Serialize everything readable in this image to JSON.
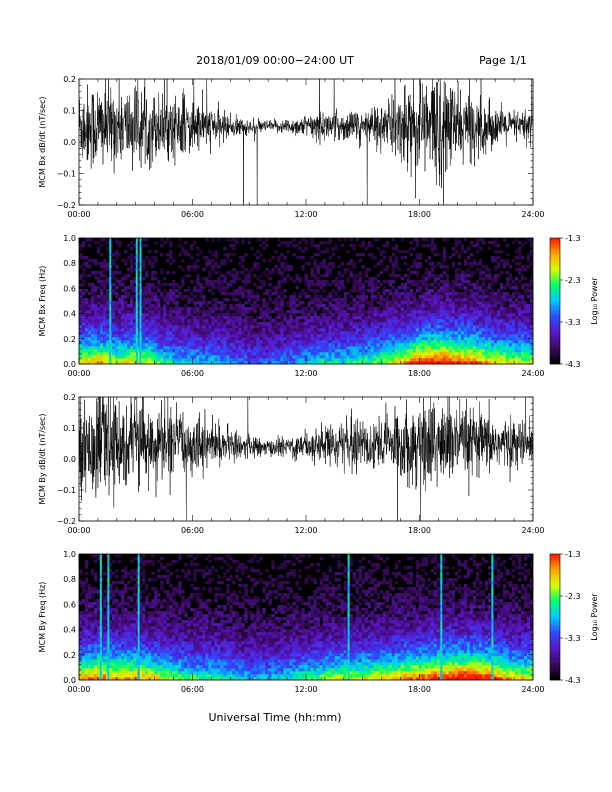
{
  "header": {
    "title": "2018/01/09  00:00−24:00 UT",
    "page": "Page 1/1"
  },
  "footer": {
    "xlabel": "Universal Time (hh:mm)"
  },
  "colors": {
    "trace": "#000000",
    "colormap": [
      "#000000",
      "#3a0a5c",
      "#5a16c8",
      "#2f4bff",
      "#00c8ff",
      "#00ff6a",
      "#d8ff00",
      "#ffa400",
      "#ff1400"
    ]
  },
  "chart_data": [
    {
      "type": "line",
      "ylabel": "MCM Bx dB/dt (nT/sec)",
      "x_ticks": [
        "00:00",
        "06:00",
        "12:00",
        "18:00",
        "24:00"
      ],
      "xlim": [
        0,
        24
      ],
      "ylim": [
        -0.2,
        0.2
      ],
      "y_ticks": [
        "0.2",
        "0.1",
        "0.0",
        "−0.1",
        "−0.2"
      ],
      "series": [
        {
          "x": [
            0,
            1,
            2,
            3,
            4,
            5,
            6,
            7,
            8,
            9,
            10,
            11,
            12,
            13,
            14,
            15,
            16,
            17,
            18,
            19,
            20,
            21,
            22,
            23,
            24
          ],
          "values": [
            0.05,
            0.05,
            0.05,
            0.05,
            0.05,
            0.05,
            0.05,
            0.05,
            0.05,
            0.045,
            0.05,
            0.05,
            0.05,
            0.05,
            0.05,
            0.05,
            0.05,
            0.05,
            0.05,
            0.05,
            0.05,
            0.05,
            0.05,
            0.05,
            0.05
          ],
          "envelope": [
            0.1,
            0.12,
            0.1,
            0.11,
            0.09,
            0.08,
            0.07,
            0.05,
            0.03,
            0.02,
            0.015,
            0.02,
            0.03,
            0.04,
            0.04,
            0.05,
            0.06,
            0.09,
            0.13,
            0.16,
            0.1,
            0.08,
            0.05,
            0.04,
            0.05
          ]
        }
      ]
    },
    {
      "type": "heatmap",
      "ylabel": "MCM Bx Freq (Hz)",
      "x_ticks": [
        "00:00",
        "06:00",
        "12:00",
        "18:00",
        "24:00"
      ],
      "xlim": [
        0,
        24
      ],
      "ylim": [
        0,
        1
      ],
      "y_ticks": [
        "1.0",
        "0.8",
        "0.6",
        "0.4",
        "0.2",
        "0.0"
      ],
      "colorbar": {
        "label": "Log₁₀ Power",
        "ticks": [
          "-1.3",
          "-2.3",
          "-3.3",
          "-4.3"
        ],
        "range": [
          -4.3,
          -1.3
        ]
      },
      "activity_profile": [
        0.55,
        0.6,
        0.5,
        0.55,
        0.45,
        0.35,
        0.3,
        0.3,
        0.25,
        0.2,
        0.2,
        0.25,
        0.3,
        0.35,
        0.35,
        0.4,
        0.45,
        0.55,
        0.7,
        0.75,
        0.7,
        0.65,
        0.55,
        0.5,
        0.5
      ],
      "bright_lines_hours": [
        1.6,
        3.0,
        3.2
      ]
    },
    {
      "type": "line",
      "ylabel": "MCM By dB/dt (nT/sec)",
      "x_ticks": [
        "00:00",
        "06:00",
        "12:00",
        "18:00",
        "24:00"
      ],
      "xlim": [
        0,
        24
      ],
      "ylim": [
        -0.2,
        0.2
      ],
      "y_ticks": [
        "0.2",
        "0.1",
        "0.0",
        "−0.1",
        "−0.2"
      ],
      "series": [
        {
          "x": [
            0,
            1,
            2,
            3,
            4,
            5,
            6,
            7,
            8,
            9,
            10,
            11,
            12,
            13,
            14,
            15,
            16,
            17,
            18,
            19,
            20,
            21,
            22,
            23,
            24
          ],
          "values": [
            0.05,
            0.05,
            0.05,
            0.05,
            0.05,
            0.05,
            0.05,
            0.05,
            0.045,
            0.04,
            0.035,
            0.04,
            0.045,
            0.05,
            0.05,
            0.05,
            0.05,
            0.05,
            0.05,
            0.05,
            0.05,
            0.05,
            0.05,
            0.05,
            0.05
          ],
          "envelope": [
            0.12,
            0.14,
            0.12,
            0.12,
            0.1,
            0.09,
            0.08,
            0.06,
            0.04,
            0.03,
            0.02,
            0.03,
            0.04,
            0.05,
            0.06,
            0.07,
            0.08,
            0.09,
            0.12,
            0.13,
            0.1,
            0.09,
            0.07,
            0.06,
            0.06
          ]
        }
      ]
    },
    {
      "type": "heatmap",
      "ylabel": "MCM By Freq (Hz)",
      "x_ticks": [
        "00:00",
        "06:00",
        "12:00",
        "18:00",
        "24:00"
      ],
      "xlim": [
        0,
        24
      ],
      "ylim": [
        0,
        1
      ],
      "y_ticks": [
        "1.0",
        "0.8",
        "0.6",
        "0.4",
        "0.2",
        "0.0"
      ],
      "colorbar": {
        "label": "Log₁₀ Power",
        "ticks": [
          "-1.3",
          "-2.3",
          "-3.3",
          "-4.3"
        ],
        "range": [
          -4.3,
          -1.3
        ]
      },
      "activity_profile": [
        0.6,
        0.65,
        0.6,
        0.6,
        0.55,
        0.45,
        0.4,
        0.4,
        0.35,
        0.3,
        0.3,
        0.35,
        0.4,
        0.45,
        0.5,
        0.5,
        0.55,
        0.6,
        0.65,
        0.7,
        0.75,
        0.75,
        0.65,
        0.55,
        0.55
      ],
      "bright_lines_hours": [
        1.1,
        1.5,
        3.1,
        14.2,
        19.1,
        21.8
      ]
    }
  ]
}
